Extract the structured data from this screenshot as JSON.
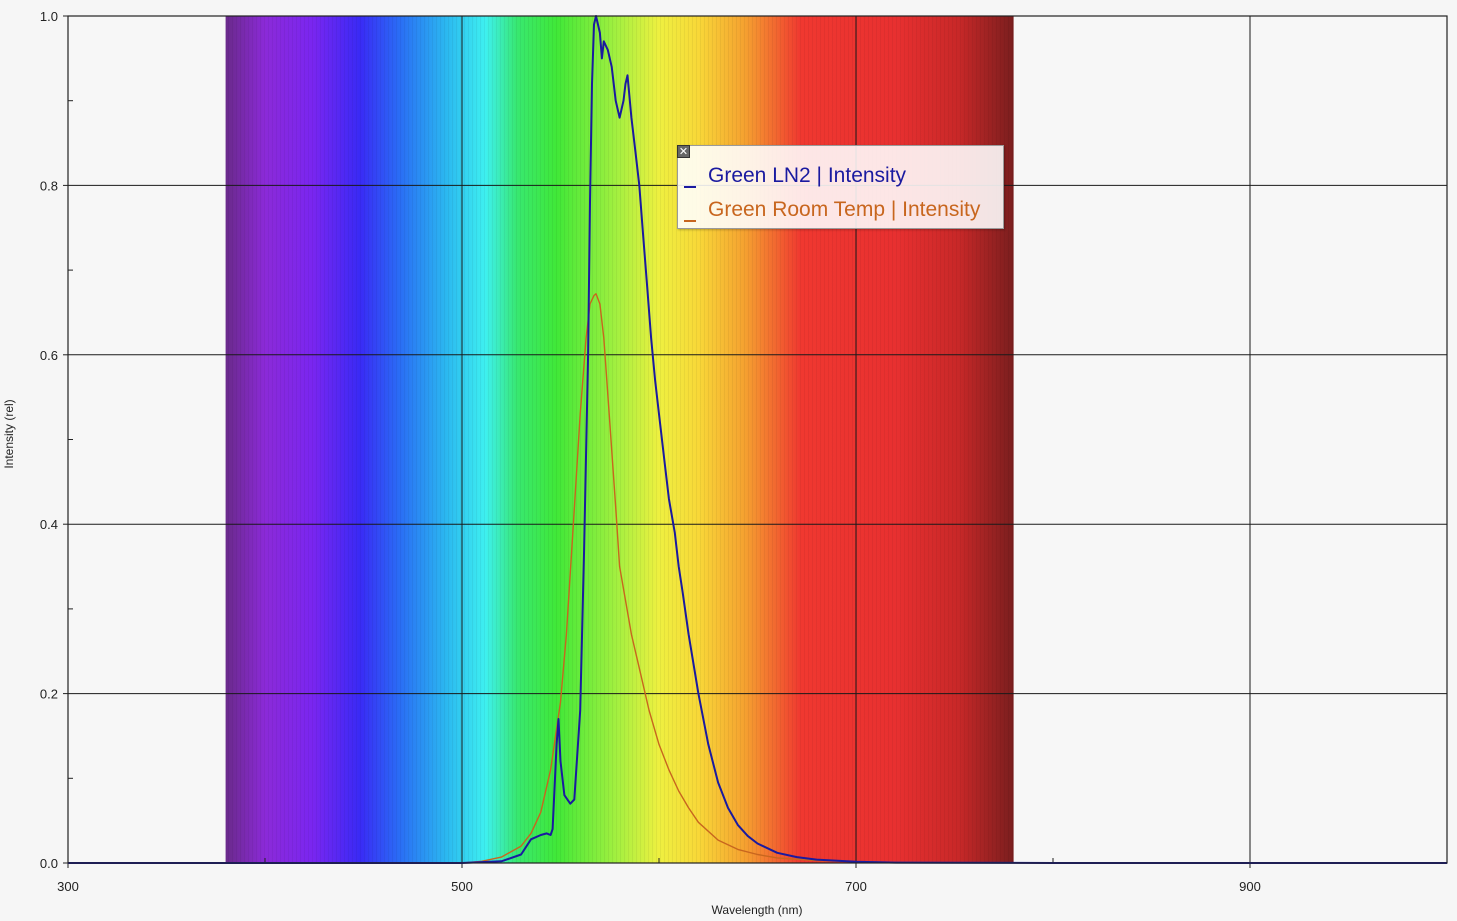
{
  "chart_data": {
    "type": "line",
    "xlabel": "Wavelength (nm)",
    "ylabel": "Intensity (rel)",
    "xlim": [
      300,
      1000
    ],
    "ylim": [
      0,
      1.0
    ],
    "x_ticks": [
      300,
      500,
      700,
      900
    ],
    "y_ticks": [
      0.0,
      0.2,
      0.4,
      0.6,
      0.8,
      1.0
    ],
    "y_tick_labels": [
      "0.0",
      "0.2",
      "0.4",
      "0.6",
      "0.8",
      "1.0"
    ],
    "grid": true,
    "legend_position": "top-center",
    "visible_spectrum_band_nm": [
      380,
      780
    ],
    "series": [
      {
        "name": "Green LN2 | Intensity",
        "color": "#1a1aa0",
        "x": [
          300,
          500,
          520,
          530,
          535,
          540,
          543,
          545,
          546,
          547,
          548,
          549,
          550,
          552,
          555,
          557,
          560,
          562,
          564,
          565,
          566,
          567,
          568,
          570,
          571,
          572,
          574,
          576,
          578,
          580,
          582,
          583,
          584,
          586,
          588,
          590,
          592,
          594,
          596,
          598,
          600,
          603,
          605,
          608,
          610,
          612,
          615,
          620,
          625,
          630,
          635,
          640,
          645,
          650,
          660,
          670,
          680,
          700,
          720,
          750,
          800,
          1000
        ],
        "y": [
          0,
          0,
          0.002,
          0.01,
          0.028,
          0.033,
          0.035,
          0.033,
          0.04,
          0.09,
          0.14,
          0.17,
          0.12,
          0.08,
          0.07,
          0.075,
          0.18,
          0.37,
          0.6,
          0.78,
          0.92,
          0.99,
          1.0,
          0.98,
          0.95,
          0.97,
          0.96,
          0.94,
          0.9,
          0.88,
          0.9,
          0.92,
          0.93,
          0.88,
          0.84,
          0.8,
          0.74,
          0.68,
          0.62,
          0.57,
          0.53,
          0.47,
          0.43,
          0.39,
          0.35,
          0.32,
          0.27,
          0.2,
          0.14,
          0.095,
          0.065,
          0.045,
          0.032,
          0.023,
          0.012,
          0.007,
          0.004,
          0.0015,
          0.0005,
          0.0002,
          0,
          0
        ]
      },
      {
        "name": "Green Room Temp | Intensity",
        "color": "#c8661e",
        "x": [
          300,
          500,
          510,
          520,
          530,
          535,
          540,
          545,
          550,
          553,
          556,
          560,
          563,
          565,
          567,
          568,
          570,
          572,
          575,
          578,
          580,
          583,
          586,
          590,
          595,
          600,
          605,
          610,
          615,
          620,
          630,
          640,
          650,
          660,
          680,
          700,
          720,
          750,
          800,
          1000
        ],
        "y": [
          0,
          0,
          0.002,
          0.007,
          0.02,
          0.035,
          0.06,
          0.11,
          0.19,
          0.27,
          0.38,
          0.53,
          0.62,
          0.66,
          0.67,
          0.672,
          0.66,
          0.62,
          0.52,
          0.42,
          0.35,
          0.31,
          0.27,
          0.23,
          0.18,
          0.14,
          0.11,
          0.085,
          0.065,
          0.048,
          0.027,
          0.016,
          0.01,
          0.006,
          0.003,
          0.0015,
          0.0007,
          0.0003,
          0.0001,
          0
        ]
      }
    ]
  },
  "legend": {
    "close_glyph": "✕"
  }
}
